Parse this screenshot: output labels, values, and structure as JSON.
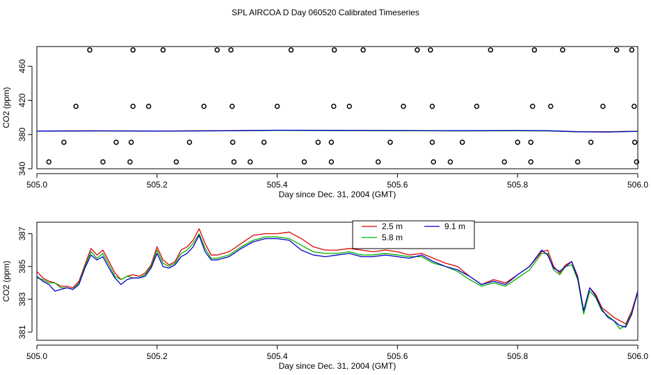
{
  "title": "SPL AIRCOA D  Day 060520  Calibrated Timeseries",
  "colors": {
    "red": "#dd0000",
    "green": "#00b000",
    "blue": "#0000cc",
    "black": "#000000"
  },
  "chart_data": [
    {
      "type": "scatter",
      "title": "",
      "xlabel": "Day since Dec. 31, 2004 (GMT)",
      "ylabel": "CO2 (ppm)",
      "xlim": [
        505.0,
        506.0
      ],
      "ylim": [
        340,
        483
      ],
      "xticks": [
        505.0,
        505.2,
        505.4,
        505.6,
        505.8,
        506.0
      ],
      "xtick_labels": [
        "505.0",
        "505.2",
        "505.4",
        "505.6",
        "505.8",
        "506.0"
      ],
      "yticks": [
        340,
        380,
        420,
        460
      ],
      "ytick_labels": [
        "340",
        "380",
        "420",
        "460"
      ],
      "points": {
        "y": [
          348,
          371,
          413,
          479
        ],
        "x": [
          [
            505.02,
            505.11,
            505.155,
            505.232,
            505.328,
            505.355,
            505.445,
            505.49,
            505.568,
            505.66,
            505.688,
            505.778,
            505.822,
            505.9,
            505.998
          ],
          [
            505.045,
            505.132,
            505.157,
            505.254,
            505.326,
            505.378,
            505.468,
            505.49,
            505.588,
            505.658,
            505.708,
            505.8,
            505.822,
            505.922,
            505.995
          ],
          [
            505.065,
            505.16,
            505.186,
            505.278,
            505.325,
            505.4,
            505.494,
            505.52,
            505.61,
            505.658,
            505.732,
            505.825,
            505.855,
            505.942,
            505.994
          ],
          [
            505.088,
            505.16,
            505.21,
            505.3,
            505.323,
            505.423,
            505.495,
            505.543,
            505.633,
            505.655,
            505.755,
            505.828,
            505.875,
            505.965,
            505.99
          ]
        ]
      },
      "series": [
        {
          "name": "2.5 m",
          "color": "#dd0000",
          "x": [
            505.0,
            505.1,
            505.2,
            505.3,
            505.4,
            505.5,
            505.6,
            505.7,
            505.8,
            505.85,
            505.9,
            505.95,
            506.0
          ],
          "y": [
            384.2,
            384.3,
            384.2,
            384.5,
            385.0,
            384.8,
            384.6,
            384.4,
            384.6,
            384.4,
            383.4,
            383.3,
            383.9
          ]
        },
        {
          "name": "5.8 m",
          "color": "#00b000",
          "x": [
            505.0,
            505.1,
            505.2,
            505.3,
            505.4,
            505.5,
            505.6,
            505.7,
            505.8,
            505.85,
            505.9,
            505.95,
            506.0
          ],
          "y": [
            384.0,
            384.2,
            384.0,
            384.3,
            384.8,
            384.6,
            384.5,
            384.2,
            384.4,
            384.2,
            383.2,
            383.1,
            383.7
          ]
        },
        {
          "name": "9.1 m",
          "color": "#0000cc",
          "x": [
            505.0,
            505.1,
            505.2,
            505.3,
            505.4,
            505.5,
            505.6,
            505.7,
            505.8,
            505.85,
            505.9,
            505.95,
            506.0
          ],
          "y": [
            384.1,
            384.4,
            384.1,
            384.4,
            385.1,
            384.9,
            384.8,
            384.5,
            384.8,
            384.5,
            383.3,
            383.0,
            383.8
          ]
        }
      ]
    },
    {
      "type": "line",
      "title": "",
      "xlabel": "Day since Dec. 31, 2004 (GMT)",
      "ylabel": "CO2 (ppm)",
      "xlim": [
        505.0,
        506.0
      ],
      "ylim": [
        380.5,
        387.7
      ],
      "xticks": [
        505.0,
        505.2,
        505.4,
        505.6,
        505.8,
        506.0
      ],
      "xtick_labels": [
        "505.0",
        "505.2",
        "505.4",
        "505.6",
        "505.8",
        "506.0"
      ],
      "yticks": [
        381,
        383,
        385,
        387
      ],
      "ytick_labels": [
        "381",
        "383",
        "385",
        "387"
      ],
      "legend": {
        "position": "top-center",
        "entries": [
          "2.5 m",
          "9.1 m",
          "5.8 m"
        ]
      },
      "series": [
        {
          "name": "2.5 m",
          "color": "#dd0000",
          "x": [
            505.0,
            505.01,
            505.02,
            505.03,
            505.04,
            505.05,
            505.06,
            505.07,
            505.08,
            505.09,
            505.1,
            505.11,
            505.12,
            505.13,
            505.14,
            505.15,
            505.16,
            505.17,
            505.18,
            505.19,
            505.2,
            505.21,
            505.22,
            505.23,
            505.24,
            505.25,
            505.26,
            505.27,
            505.28,
            505.29,
            505.3,
            505.32,
            505.34,
            505.36,
            505.38,
            505.4,
            505.42,
            505.44,
            505.46,
            505.48,
            505.5,
            505.52,
            505.54,
            505.56,
            505.58,
            505.6,
            505.62,
            505.64,
            505.66,
            505.68,
            505.7,
            505.72,
            505.74,
            505.76,
            505.78,
            505.8,
            505.82,
            505.84,
            505.85,
            505.86,
            505.87,
            505.88,
            505.89,
            505.9,
            505.91,
            505.92,
            505.93,
            505.94,
            505.95,
            505.96,
            505.97,
            505.98,
            505.99,
            506.0
          ],
          "y": [
            384.7,
            384.3,
            384.1,
            384.0,
            383.8,
            383.8,
            383.7,
            384.1,
            385.1,
            386.1,
            385.7,
            386.0,
            385.3,
            384.6,
            384.2,
            384.4,
            384.5,
            384.4,
            384.6,
            385.1,
            386.2,
            385.4,
            385.1,
            385.3,
            386.0,
            386.2,
            386.6,
            387.3,
            386.4,
            385.7,
            385.7,
            385.9,
            386.4,
            386.9,
            387.0,
            387.0,
            387.1,
            386.7,
            386.2,
            386.0,
            386.0,
            386.1,
            386.0,
            385.9,
            386.0,
            385.9,
            385.7,
            385.8,
            385.5,
            385.2,
            385.0,
            384.4,
            383.9,
            384.2,
            384.0,
            384.5,
            385.0,
            385.9,
            386.0,
            385.0,
            384.6,
            385.1,
            385.3,
            384.4,
            382.3,
            383.7,
            383.3,
            382.5,
            382.2,
            381.9,
            381.7,
            381.5,
            382.3,
            383.5
          ]
        },
        {
          "name": "5.8 m",
          "color": "#00b000",
          "x": [
            505.0,
            505.01,
            505.02,
            505.03,
            505.04,
            505.05,
            505.06,
            505.07,
            505.08,
            505.09,
            505.1,
            505.11,
            505.12,
            505.13,
            505.14,
            505.15,
            505.16,
            505.17,
            505.18,
            505.19,
            505.2,
            505.21,
            505.22,
            505.23,
            505.24,
            505.25,
            505.26,
            505.27,
            505.28,
            505.29,
            505.3,
            505.32,
            505.34,
            505.36,
            505.38,
            505.4,
            505.42,
            505.44,
            505.46,
            505.48,
            505.5,
            505.52,
            505.54,
            505.56,
            505.58,
            505.6,
            505.62,
            505.64,
            505.66,
            505.68,
            505.7,
            505.72,
            505.74,
            505.76,
            505.78,
            505.8,
            505.82,
            505.84,
            505.85,
            505.86,
            505.87,
            505.88,
            505.89,
            505.9,
            505.91,
            505.92,
            505.93,
            505.94,
            505.95,
            505.96,
            505.97,
            505.98,
            505.99,
            506.0
          ],
          "y": [
            384.3,
            384.2,
            384.0,
            384.0,
            383.7,
            383.7,
            383.6,
            384.0,
            385.0,
            385.9,
            385.5,
            385.8,
            385.1,
            384.4,
            384.2,
            384.4,
            384.3,
            384.3,
            384.5,
            385.0,
            386.0,
            385.2,
            385.0,
            385.2,
            385.8,
            386.0,
            386.4,
            387.0,
            386.1,
            385.5,
            385.5,
            385.7,
            386.2,
            386.6,
            386.8,
            386.8,
            386.7,
            386.3,
            385.9,
            385.8,
            385.8,
            385.9,
            385.7,
            385.7,
            385.8,
            385.7,
            385.6,
            385.6,
            385.2,
            385.0,
            384.7,
            384.2,
            383.8,
            384.0,
            383.8,
            384.3,
            384.8,
            385.8,
            385.8,
            384.8,
            384.5,
            385.0,
            385.1,
            384.2,
            382.1,
            383.5,
            383.1,
            382.3,
            382.0,
            381.7,
            381.2,
            381.4,
            382.2,
            383.4
          ]
        },
        {
          "name": "9.1 m",
          "color": "#0000cc",
          "x": [
            505.0,
            505.01,
            505.02,
            505.03,
            505.04,
            505.05,
            505.06,
            505.07,
            505.08,
            505.09,
            505.1,
            505.11,
            505.12,
            505.13,
            505.14,
            505.15,
            505.16,
            505.17,
            505.18,
            505.19,
            505.2,
            505.21,
            505.22,
            505.23,
            505.24,
            505.25,
            505.26,
            505.27,
            505.28,
            505.29,
            505.3,
            505.32,
            505.34,
            505.36,
            505.38,
            505.4,
            505.42,
            505.44,
            505.46,
            505.48,
            505.5,
            505.52,
            505.54,
            505.56,
            505.58,
            505.6,
            505.62,
            505.64,
            505.66,
            505.68,
            505.7,
            505.72,
            505.74,
            505.76,
            505.78,
            505.8,
            505.82,
            505.84,
            505.85,
            505.86,
            505.87,
            505.88,
            505.89,
            505.9,
            505.91,
            505.92,
            505.93,
            505.94,
            505.95,
            505.96,
            505.97,
            505.98,
            505.99,
            506.0
          ],
          "y": [
            384.4,
            384.1,
            383.9,
            383.5,
            383.6,
            383.7,
            383.6,
            383.9,
            384.9,
            385.7,
            385.4,
            385.6,
            384.9,
            384.3,
            383.9,
            384.2,
            384.3,
            384.3,
            384.4,
            384.9,
            385.8,
            385.0,
            384.9,
            385.1,
            385.6,
            385.8,
            386.2,
            386.9,
            385.9,
            385.4,
            385.4,
            385.6,
            386.1,
            386.5,
            386.7,
            386.7,
            386.6,
            386.0,
            385.7,
            385.6,
            385.7,
            385.8,
            385.6,
            385.6,
            385.7,
            385.6,
            385.5,
            385.7,
            385.3,
            385.0,
            384.8,
            384.4,
            383.9,
            384.1,
            383.9,
            384.5,
            385.0,
            386.0,
            385.7,
            384.9,
            384.7,
            385.0,
            385.3,
            384.3,
            382.3,
            383.7,
            383.2,
            382.4,
            381.9,
            381.7,
            381.4,
            381.3,
            382.1,
            383.5
          ]
        }
      ]
    }
  ]
}
